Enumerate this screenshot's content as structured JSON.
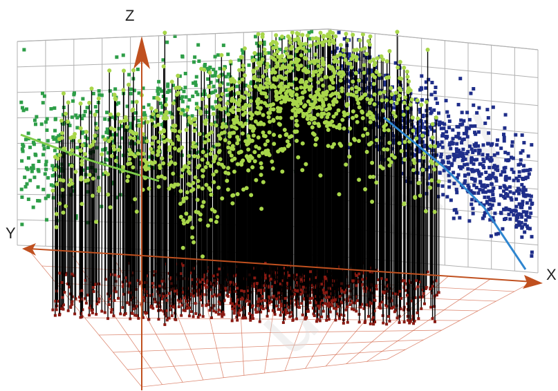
{
  "chart_data": {
    "type": "scatter",
    "subtype": "3d-scatter-with-drop-lines",
    "title": "",
    "axes": {
      "x_label": "X",
      "y_label": "Y",
      "z_label": "Z"
    },
    "grid": true,
    "legend": "none",
    "colors": {
      "high_z_points": "#a8d64a",
      "green_points": "#2e9e48",
      "blue_points": "#1f2e8a",
      "floor_points": "#8a1a12",
      "drop_lines": "#000000",
      "axis_arrows": "#c0501f",
      "fit_line_left": "#7fcc4a",
      "fit_line_right": "#2f86d0",
      "grid_lines": "#b0b0b0",
      "floor_grid": "#d05a3a"
    },
    "series": [
      {
        "name": "",
        "cluster": "green-back-left",
        "n_points": 700
      },
      {
        "name": "",
        "cluster": "blue-back-right",
        "n_points": 900
      },
      {
        "name": "",
        "cluster": "lime-front-stems",
        "n_points": 1200
      }
    ],
    "fit_lines": 2,
    "watermark": "use only"
  }
}
